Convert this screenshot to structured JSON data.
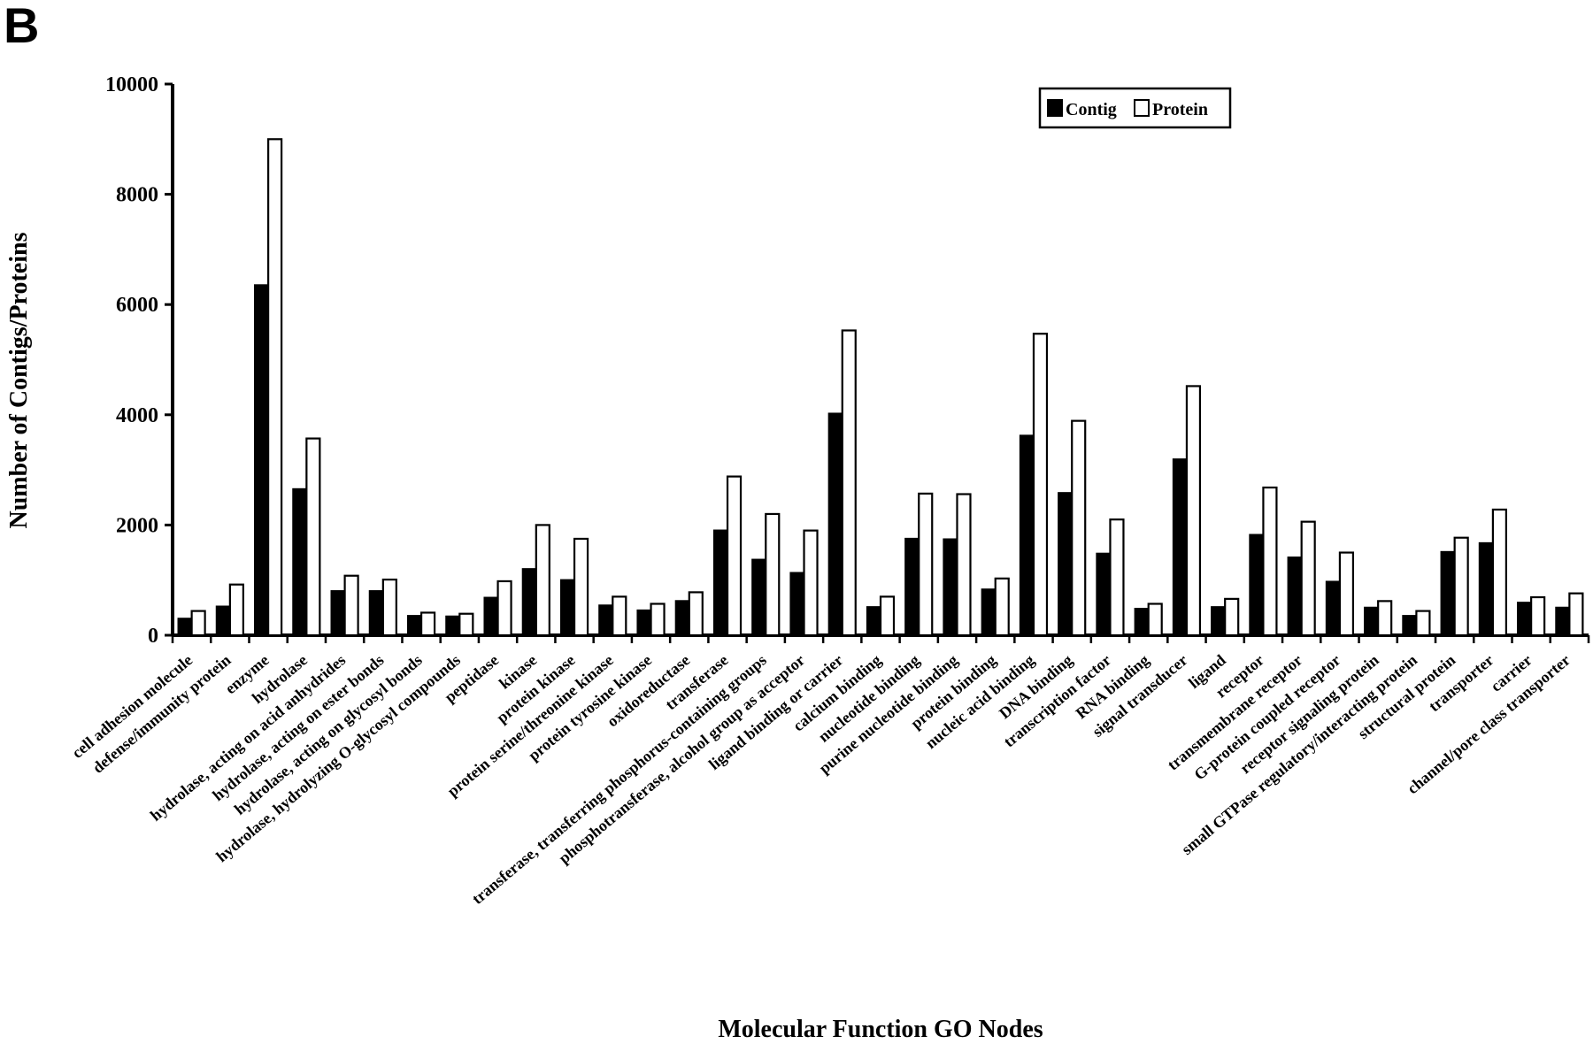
{
  "panel_label": "B",
  "chart_data": {
    "type": "bar",
    "title": "",
    "xlabel": "Molecular Function GO Nodes",
    "ylabel": "Number of Contigs/Proteins",
    "ylim": [
      0,
      10000
    ],
    "yticks": [
      0,
      2000,
      4000,
      6000,
      8000,
      10000
    ],
    "grid": false,
    "legend_position": "top-right",
    "categories": [
      "cell adhesion molecule",
      "defense/immunity protein",
      "enzyme",
      "hydrolase",
      "hydrolase, acting on acid anhydrides",
      "hydrolase, acting on ester bonds",
      "hydrolase, acting on glycosyl bonds",
      "hydrolase, hydrolyzing O-glycosyl compounds",
      "peptidase",
      "kinase",
      "protein kinase",
      "protein serine/threonine kinase",
      "protein tyrosine kinase",
      "oxidoreductase",
      "transferase",
      "transferase, transferring phosphorus-containing groups",
      "phosphotransferase, alcohol group as acceptor",
      "ligand binding or carrier",
      "calcium binding",
      "nucleotide binding",
      "purine nucleotide binding",
      "protein binding",
      "nucleic acid binding",
      "DNA binding",
      "transcription factor",
      "RNA binding",
      "signal transducer",
      "ligand",
      "receptor",
      "transmembrane receptor",
      "G-protein coupled receptor",
      "receptor signaling protein",
      "small GTPase regulatory/interacting protein",
      "structural protein",
      "transporter",
      "carrier",
      "channel/pore class transporter"
    ],
    "series": [
      {
        "name": "Contig",
        "color": "#000000",
        "values": [
          300,
          520,
          6350,
          2650,
          800,
          800,
          350,
          340,
          680,
          1200,
          1000,
          540,
          450,
          620,
          1900,
          1370,
          1130,
          4020,
          510,
          1750,
          1740,
          830,
          3620,
          2580,
          1480,
          480,
          3190,
          510,
          1820,
          1410,
          970,
          500,
          350,
          1510,
          1670,
          590,
          500
        ]
      },
      {
        "name": "Protein",
        "color": "#ffffff",
        "values": [
          440,
          920,
          9000,
          3570,
          1080,
          1010,
          410,
          390,
          980,
          2000,
          1750,
          700,
          570,
          780,
          2880,
          2200,
          1900,
          5530,
          700,
          2570,
          2560,
          1030,
          5470,
          3890,
          2100,
          570,
          4520,
          660,
          2680,
          2060,
          1500,
          620,
          440,
          1770,
          2280,
          690,
          760
        ]
      }
    ]
  }
}
